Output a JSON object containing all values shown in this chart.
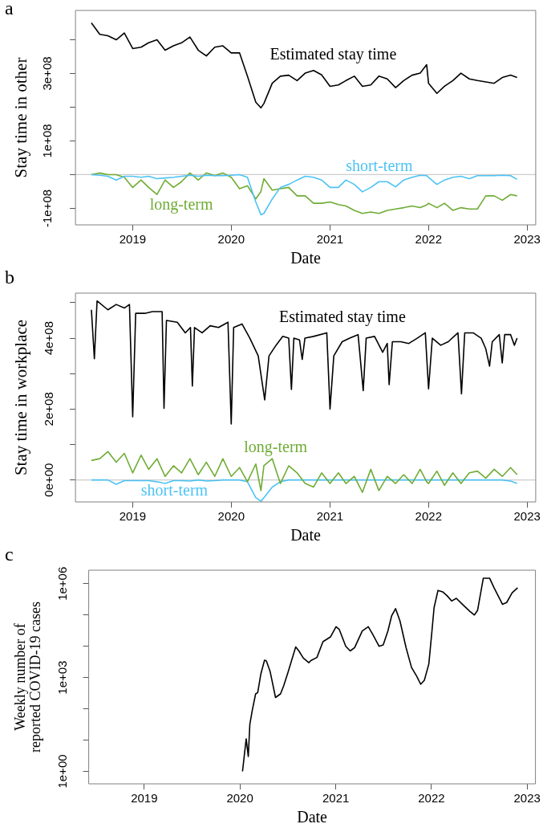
{
  "chart_data": [
    {
      "type": "line",
      "title": "a",
      "xlabel": "Date",
      "ylabel": "Stay time in other",
      "legend": false,
      "grid": false,
      "marker": "none",
      "x": [
        "2018-08-01",
        "2018-09-01",
        "2018-10-01",
        "2018-11-01",
        "2018-12-01",
        "2019-01-01",
        "2019-02-01",
        "2019-03-01",
        "2019-04-01",
        "2019-05-01",
        "2019-06-01",
        "2019-07-01",
        "2019-08-01",
        "2019-09-01",
        "2019-10-01",
        "2019-11-01",
        "2019-12-01",
        "2020-01-01",
        "2020-02-01",
        "2020-03-01",
        "2020-04-01",
        "2020-04-20",
        "2020-05-01",
        "2020-06-01",
        "2020-07-01",
        "2020-08-01",
        "2020-09-01",
        "2020-10-01",
        "2020-11-01",
        "2020-12-01",
        "2021-01-01",
        "2021-02-01",
        "2021-03-01",
        "2021-04-01",
        "2021-05-01",
        "2021-06-01",
        "2021-07-01",
        "2021-08-01",
        "2021-09-01",
        "2021-10-01",
        "2021-11-01",
        "2021-12-01",
        "2021-12-25",
        "2022-01-01",
        "2022-02-01",
        "2022-03-01",
        "2022-04-01",
        "2022-05-01",
        "2022-06-01",
        "2022-07-01",
        "2022-08-01",
        "2022-09-01",
        "2022-10-01",
        "2022-11-01",
        "2022-11-25"
      ],
      "series": [
        {
          "name": "Estimated stay time",
          "color": "#000000",
          "values": [
            450000000.0,
            416000000.0,
            412000000.0,
            400000000.0,
            420000000.0,
            374000000.0,
            378000000.0,
            391000000.0,
            400000000.0,
            369000000.0,
            382000000.0,
            391000000.0,
            408000000.0,
            369000000.0,
            352000000.0,
            378000000.0,
            382000000.0,
            361000000.0,
            361000000.0,
            292000000.0,
            215000000.0,
            198000000.0,
            211000000.0,
            271000000.0,
            292000000.0,
            295000000.0,
            279000000.0,
            301000000.0,
            309000000.0,
            296000000.0,
            262000000.0,
            266000000.0,
            279000000.0,
            292000000.0,
            262000000.0,
            266000000.0,
            292000000.0,
            284000000.0,
            258000000.0,
            279000000.0,
            295000000.0,
            301000000.0,
            326000000.0,
            271000000.0,
            241000000.0,
            262000000.0,
            279000000.0,
            301000000.0,
            284000000.0,
            279000000.0,
            275000000.0,
            271000000.0,
            288000000.0,
            295000000.0,
            288000000.0
          ]
        },
        {
          "name": "short-term",
          "color": "#4dc3f5",
          "values": [
            0,
            -2000000.0,
            -5000000.0,
            -16000000.0,
            -5000000.0,
            -5000000.0,
            -8000000.0,
            -5000000.0,
            -12000000.0,
            -10000000.0,
            -8000000.0,
            -5000000.0,
            -2000000.0,
            -5000000.0,
            -2000000.0,
            -3000000.0,
            -3000000.0,
            -2000000.0,
            0,
            -8000000.0,
            -81000000.0,
            -119000000.0,
            -115000000.0,
            -72000000.0,
            -38000000.0,
            -29000000.0,
            -16000000.0,
            -5000000.0,
            -8000000.0,
            -16000000.0,
            -38000000.0,
            -38000000.0,
            -16000000.0,
            -29000000.0,
            -51000000.0,
            -38000000.0,
            -21000000.0,
            -21000000.0,
            -36000000.0,
            -16000000.0,
            -8000000.0,
            -2000000.0,
            -3000000.0,
            -8000000.0,
            -29000000.0,
            -16000000.0,
            -8000000.0,
            -5000000.0,
            -12000000.0,
            -3000000.0,
            -3000000.0,
            -3000000.0,
            -2000000.0,
            -3000000.0,
            -14000000.0
          ]
        },
        {
          "name": "long-term",
          "color": "#6fac35",
          "values": [
            0,
            5000000.0,
            0,
            0,
            -8000000.0,
            -38000000.0,
            -16000000.0,
            -38000000.0,
            -59000000.0,
            -16000000.0,
            -38000000.0,
            -21000000.0,
            5000000.0,
            -16000000.0,
            5000000.0,
            -3000000.0,
            5000000.0,
            -8000000.0,
            -42000000.0,
            -33000000.0,
            -72000000.0,
            -50000000.0,
            -12000000.0,
            -46000000.0,
            -42000000.0,
            -38000000.0,
            -63000000.0,
            -63000000.0,
            -85000000.0,
            -85000000.0,
            -81000000.0,
            -89000000.0,
            -93000000.0,
            -106000000.0,
            -115000000.0,
            -111000000.0,
            -115000000.0,
            -106000000.0,
            -102000000.0,
            -98000000.0,
            -93000000.0,
            -98000000.0,
            -90000000.0,
            -85000000.0,
            -98000000.0,
            -85000000.0,
            -106000000.0,
            -98000000.0,
            -102000000.0,
            -102000000.0,
            -63000000.0,
            -63000000.0,
            -76000000.0,
            -59000000.0,
            -63000000.0
          ]
        }
      ],
      "xlim": [
        "2018-06-03",
        "2023-02-02"
      ],
      "xticks": [
        "2019",
        "2020",
        "2021",
        "2022",
        "2023"
      ],
      "ylim": [
        -149000000.0,
        487000000.0
      ],
      "yticks": [
        {
          "value": -100000000.0,
          "label": "-1e+08"
        },
        {
          "value": 0,
          "label": null
        },
        {
          "value": 100000000.0,
          "label": "1e+08"
        },
        {
          "value": 200000000.0,
          "label": null
        },
        {
          "value": 300000000.0,
          "label": "3e+08"
        },
        {
          "value": 400000000.0,
          "label": null
        }
      ],
      "ref_lines": [
        {
          "axis": "y",
          "value": 0,
          "color": "#cccccc"
        }
      ]
    },
    {
      "type": "line",
      "title": "b",
      "xlabel": "Date",
      "ylabel": "Stay time in workplace",
      "legend": false,
      "grid": false,
      "marker": "none",
      "x": [
        "2018-08-01",
        "2018-09-01",
        "2018-10-01",
        "2018-11-01",
        "2018-12-01",
        "2019-01-01",
        "2019-02-01",
        "2019-03-01",
        "2019-04-01",
        "2019-05-01",
        "2019-06-01",
        "2019-07-01",
        "2019-08-01",
        "2019-09-01",
        "2019-10-01",
        "2019-11-01",
        "2019-12-01",
        "2020-01-01",
        "2020-02-01",
        "2020-03-01",
        "2020-04-01",
        "2020-04-20",
        "2020-05-01",
        "2020-06-01",
        "2020-07-01",
        "2020-08-01",
        "2020-09-01",
        "2020-10-01",
        "2020-11-01",
        "2020-12-01",
        "2021-01-01",
        "2021-02-01",
        "2021-03-01",
        "2021-04-01",
        "2021-05-01",
        "2021-06-01",
        "2021-07-01",
        "2021-08-01",
        "2021-09-01",
        "2021-10-01",
        "2021-11-01",
        "2021-12-01",
        "2021-12-25",
        "2022-01-01",
        "2022-02-01",
        "2022-03-01",
        "2022-04-01",
        "2022-05-01",
        "2022-06-01",
        "2022-07-01",
        "2022-08-01",
        "2022-09-01",
        "2022-10-01",
        "2022-11-01",
        "2022-11-25"
      ],
      "series": [
        {
          "name": "Estimated stay time",
          "color": "#000000",
          "x": [
            "2018-08-01",
            "2018-08-12",
            "2018-08-22",
            "2018-10-01",
            "2018-11-01",
            "2018-12-01",
            "2018-12-20",
            "2019-01-01",
            "2019-01-12",
            "2019-02-15",
            "2019-03-15",
            "2019-04-20",
            "2019-04-27",
            "2019-05-06",
            "2019-06-15",
            "2019-07-15",
            "2019-08-03",
            "2019-08-10",
            "2019-08-18",
            "2019-09-15",
            "2019-10-15",
            "2019-11-15",
            "2019-12-20",
            "2020-01-01",
            "2020-01-10",
            "2020-02-10",
            "2020-03-10",
            "2020-04-10",
            "2020-05-04",
            "2020-05-20",
            "2020-06-15",
            "2020-07-10",
            "2020-08-01",
            "2020-08-11",
            "2020-08-20",
            "2020-09-10",
            "2020-09-20",
            "2020-09-30",
            "2020-11-01",
            "2020-12-20",
            "2021-01-01",
            "2021-01-15",
            "2021-02-15",
            "2021-03-15",
            "2021-04-15",
            "2021-05-04",
            "2021-05-15",
            "2021-06-15",
            "2021-07-15",
            "2021-08-01",
            "2021-08-08",
            "2021-08-20",
            "2021-09-20",
            "2021-10-20",
            "2021-11-20",
            "2021-12-20",
            "2022-01-01",
            "2022-01-15",
            "2022-02-15",
            "2022-03-15",
            "2022-04-20",
            "2022-05-03",
            "2022-05-15",
            "2022-06-15",
            "2022-07-15",
            "2022-08-01",
            "2022-08-15",
            "2022-08-25",
            "2022-09-20",
            "2022-10-01",
            "2022-10-10",
            "2022-11-01",
            "2022-11-15",
            "2022-11-25"
          ],
          "values": [
            480000000.0,
            342000000.0,
            505000000.0,
            480000000.0,
            495000000.0,
            485000000.0,
            495000000.0,
            178000000.0,
            470000000.0,
            470000000.0,
            475000000.0,
            475000000.0,
            202000000.0,
            450000000.0,
            445000000.0,
            415000000.0,
            430000000.0,
            265000000.0,
            430000000.0,
            415000000.0,
            435000000.0,
            430000000.0,
            445000000.0,
            158000000.0,
            430000000.0,
            440000000.0,
            400000000.0,
            350000000.0,
            226000000.0,
            350000000.0,
            380000000.0,
            405000000.0,
            400000000.0,
            255000000.0,
            400000000.0,
            395000000.0,
            340000000.0,
            400000000.0,
            405000000.0,
            415000000.0,
            200000000.0,
            350000000.0,
            390000000.0,
            400000000.0,
            410000000.0,
            252000000.0,
            400000000.0,
            405000000.0,
            360000000.0,
            385000000.0,
            269000000.0,
            390000000.0,
            390000000.0,
            385000000.0,
            400000000.0,
            415000000.0,
            257000000.0,
            400000000.0,
            380000000.0,
            390000000.0,
            415000000.0,
            243000000.0,
            415000000.0,
            415000000.0,
            400000000.0,
            370000000.0,
            321000000.0,
            390000000.0,
            410000000.0,
            330000000.0,
            410000000.0,
            410000000.0,
            380000000.0,
            400000000.0
          ]
        },
        {
          "name": "long-term",
          "color": "#6fac35",
          "values": [
            55000000.0,
            60000000.0,
            80000000.0,
            50000000.0,
            75000000.0,
            20000000.0,
            70000000.0,
            30000000.0,
            60000000.0,
            10000000.0,
            40000000.0,
            20000000.0,
            60000000.0,
            15000000.0,
            50000000.0,
            10000000.0,
            60000000.0,
            10000000.0,
            35000000.0,
            -5000000.0,
            45000000.0,
            -30000000.0,
            40000000.0,
            60000000.0,
            -10000000.0,
            40000000.0,
            20000000.0,
            -10000000.0,
            -20000000.0,
            20000000.0,
            -10000000.0,
            20000000.0,
            -10000000.0,
            10000000.0,
            -35000000.0,
            30000000.0,
            -30000000.0,
            10000000.0,
            -10000000.0,
            15000000.0,
            -10000000.0,
            30000000.0,
            -5000000.0,
            -10000000.0,
            25000000.0,
            -15000000.0,
            20000000.0,
            -10000000.0,
            20000000.0,
            25000000.0,
            5000000.0,
            30000000.0,
            10000000.0,
            35000000.0,
            15000000.0
          ]
        },
        {
          "name": "short-term",
          "color": "#4dc3f5",
          "values": [
            0,
            0,
            0,
            -12000000.0,
            -2000000.0,
            -2000000.0,
            -2000000.0,
            -2000000.0,
            -5000000.0,
            -10000000.0,
            -2000000.0,
            -2000000.0,
            -3000000.0,
            0,
            -3000000.0,
            -2000000.0,
            0,
            0,
            0,
            -5000000.0,
            -50000000.0,
            -60000000.0,
            -50000000.0,
            -20000000.0,
            -5000000.0,
            0,
            0,
            0,
            0,
            0,
            0,
            0,
            0,
            0,
            0,
            0,
            0,
            0,
            0,
            0,
            0,
            0,
            0,
            0,
            0,
            0,
            0,
            0,
            0,
            0,
            0,
            0,
            0,
            -3000000.0,
            -10000000.0
          ]
        }
      ],
      "xlim": [
        "2018-06-03",
        "2023-02-02"
      ],
      "xticks": [
        "2019",
        "2020",
        "2021",
        "2022",
        "2023"
      ],
      "ylim": [
        -62000000.0,
        527000000.0
      ],
      "yticks": [
        {
          "value": 0,
          "label": "0e+00"
        },
        {
          "value": 100000000.0,
          "label": null
        },
        {
          "value": 200000000.0,
          "label": "2e+08"
        },
        {
          "value": 300000000.0,
          "label": null
        },
        {
          "value": 400000000.0,
          "label": "4e+08"
        },
        {
          "value": 500000000.0,
          "label": null
        }
      ],
      "ref_lines": [
        {
          "axis": "y",
          "value": 0,
          "color": "#cccccc"
        }
      ]
    },
    {
      "type": "line",
      "title": "c",
      "xlabel": "Date",
      "ylabel": "Weekly number of\nreported COVID-19 cases",
      "legend": false,
      "grid": false,
      "marker": "none",
      "log": "y",
      "x": [
        "2020-01-11",
        "2020-01-25",
        "2020-02-02",
        "2020-02-08",
        "2020-02-17",
        "2020-03-01",
        "2020-03-09",
        "2020-03-21",
        "2020-04-04",
        "2020-04-11",
        "2020-04-25",
        "2020-05-16",
        "2020-06-04",
        "2020-06-16",
        "2020-07-03",
        "2020-08-01",
        "2020-08-13",
        "2020-08-30",
        "2020-09-20",
        "2020-09-28",
        "2020-10-21",
        "2020-11-13",
        "2020-12-12",
        "2021-01-02",
        "2021-01-14",
        "2021-02-08",
        "2021-02-25",
        "2021-03-14",
        "2021-04-12",
        "2021-05-05",
        "2021-05-22",
        "2021-06-15",
        "2021-07-01",
        "2021-07-19",
        "2021-08-02",
        "2021-08-17",
        "2021-09-03",
        "2021-09-26",
        "2021-10-17",
        "2021-11-06",
        "2021-11-21",
        "2021-12-05",
        "2021-12-22",
        "2022-01-03",
        "2022-01-11",
        "2022-01-26",
        "2022-02-13",
        "2022-03-02",
        "2022-03-19",
        "2022-04-06",
        "2022-04-29",
        "2022-05-28",
        "2022-06-14",
        "2022-06-26",
        "2022-07-18",
        "2022-08-11",
        "2022-08-28",
        "2022-09-29",
        "2022-10-15",
        "2022-11-05",
        "2022-11-26"
      ],
      "series": [
        {
          "color": "#000000",
          "values": [
            1,
            11,
            3,
            32,
            87,
            300,
            330,
            1300,
            3600,
            3400,
            1600,
            230,
            300,
            540,
            1500,
            9500,
            7100,
            4200,
            3000,
            3500,
            4400,
            14000,
            20000,
            42000,
            35000,
            10000,
            7100,
            9100,
            31000,
            42000,
            24000,
            10000,
            11000,
            31000,
            93000,
            160000,
            64000,
            9100,
            2100,
            1100,
            610,
            820,
            2700,
            31000,
            170000,
            610000,
            550000,
            410000,
            280000,
            340000,
            220000,
            130000,
            100000,
            140000,
            1500000,
            1500000,
            740000,
            220000,
            250000,
            510000,
            740000
          ]
        }
      ],
      "xlim": [
        "2018-06-03",
        "2023-02-02"
      ],
      "xticks": [
        "2019",
        "2020",
        "2021",
        "2022",
        "2023"
      ],
      "ylim": [
        0.4,
        2700000.0
      ],
      "yticks": [
        {
          "value": 1,
          "label": "1e+00"
        },
        {
          "value": 10,
          "label": null
        },
        {
          "value": 100,
          "label": null
        },
        {
          "value": 1000,
          "label": "1e+03"
        },
        {
          "value": 10000,
          "label": null
        },
        {
          "value": 100000,
          "label": null
        },
        {
          "value": 1000000,
          "label": "1e+06"
        }
      ]
    }
  ]
}
